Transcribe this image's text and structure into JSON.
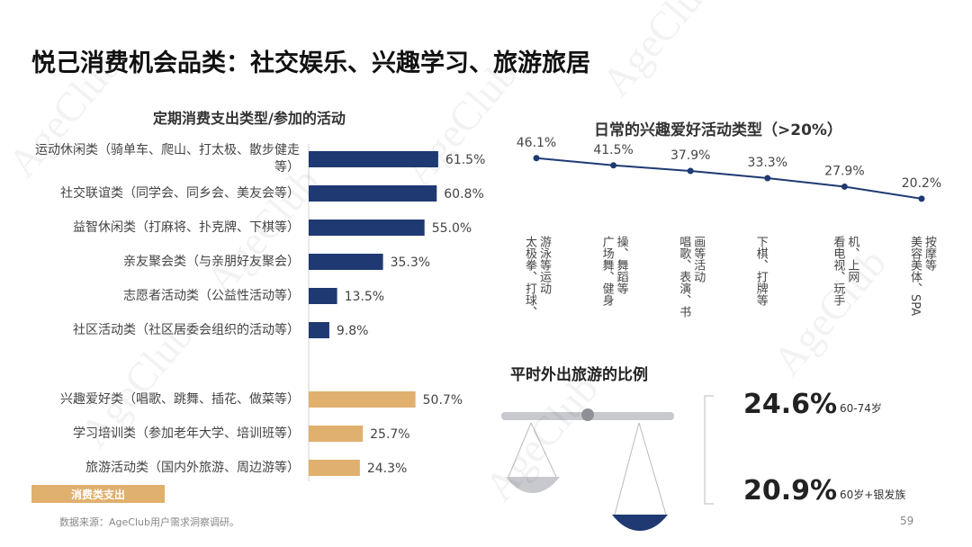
{
  "title": "悦己消费机会品类：社交娱乐、兴趣学习、旅游旅居",
  "watermark": "AgeClub",
  "chart_data": [
    {
      "type": "hbar",
      "title": "定期消费支出类型/参加的活动",
      "categories": [
        "运动休闲类（骑单车、爬山、打太极、散步健走等）",
        "社交联谊类（同学会、同乡会、美友会等）",
        "益智休闲类（打麻将、扑克牌、下棋等）",
        "亲友聚会类（与亲朋好友聚会）",
        "志愿者活动类（公益性活动等）",
        "社区活动类（社区居委会组织的活动等）",
        null,
        "兴趣爱好类（唱歌、跳舞、插花、做菜等）",
        "学习培训类（参加老年大学、培训班等）",
        "旅游活动类（国内外旅游、周边游等）"
      ],
      "series": [
        {
          "color": "#1f3a72",
          "values": [
            61.5,
            60.8,
            55.0,
            35.3,
            13.5,
            9.8,
            null,
            null,
            null,
            null
          ],
          "value_labels": [
            "61.5%",
            "60.8%",
            "55.0%",
            "35.3%",
            "13.5%",
            "9.8%",
            null,
            null,
            null,
            null
          ]
        },
        {
          "name": "消费类支出",
          "color": "#e0b06e",
          "values": [
            null,
            null,
            null,
            null,
            null,
            null,
            null,
            50.7,
            25.7,
            24.3
          ],
          "value_labels": [
            null,
            null,
            null,
            null,
            null,
            null,
            null,
            "50.7%",
            "25.7%",
            "24.3%"
          ]
        }
      ]
    },
    {
      "type": "line",
      "title": "日常的兴趣爱好活动类型（>20%）",
      "color": "#1f3a72",
      "categories": [
        "太极拳、打球、游泳等运动",
        "广场舞、健身操、舞蹈等",
        "唱歌、表演、书画等活动",
        "下棋、打牌等",
        "看电视、玩手机、上网",
        "美容美体、SPA按摩等"
      ],
      "values": [
        46.1,
        41.5,
        37.9,
        33.3,
        27.9,
        20.2
      ],
      "value_labels": [
        "46.1%",
        "41.5%",
        "37.9%",
        "33.3%",
        "27.9%",
        "20.2%"
      ]
    },
    {
      "type": "stat",
      "title": "平时外出旅游的比例",
      "categories": [
        "60-74岁",
        "60岁+银发族"
      ],
      "values": [
        24.6,
        20.9
      ],
      "value_labels": [
        "24.6%",
        "20.9%"
      ]
    }
  ],
  "source": "数据来源：AgeClub用户需求洞察调研。",
  "page_number": 59
}
